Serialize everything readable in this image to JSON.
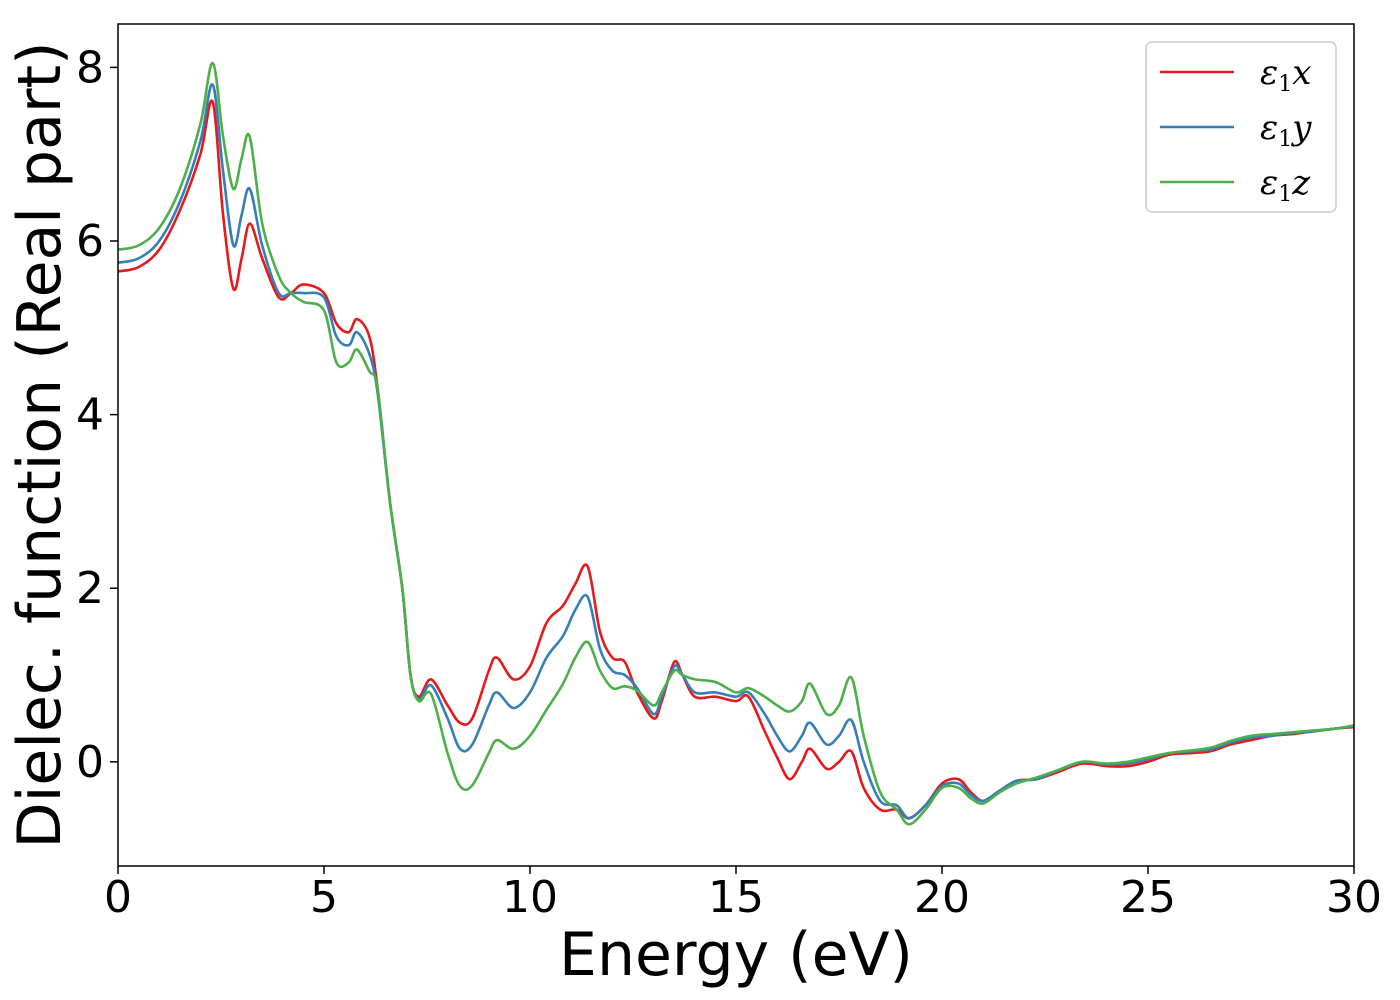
{
  "chart_data": {
    "type": "line",
    "title": "",
    "xlabel": "Energy (eV)",
    "ylabel": "Dielec. function (Real part)",
    "xlim": [
      0,
      30
    ],
    "ylim": [
      -1.2,
      8.5
    ],
    "xticks": [
      0,
      5,
      10,
      15,
      20,
      25,
      30
    ],
    "yticks": [
      0,
      2,
      4,
      6,
      8
    ],
    "grid": false,
    "legend_position": "top-right",
    "series": [
      {
        "name": "ε1x",
        "legend_symbol": "ε",
        "legend_sub": "1",
        "legend_axis": "x",
        "color": "#e41a1c",
        "points": [
          [
            0,
            5.65
          ],
          [
            0.5,
            5.7
          ],
          [
            1.0,
            5.9
          ],
          [
            1.5,
            6.35
          ],
          [
            2.0,
            7.0
          ],
          [
            2.3,
            7.6
          ],
          [
            2.55,
            6.3
          ],
          [
            2.8,
            5.45
          ],
          [
            3.0,
            5.8
          ],
          [
            3.2,
            6.2
          ],
          [
            3.5,
            5.8
          ],
          [
            3.9,
            5.35
          ],
          [
            4.2,
            5.4
          ],
          [
            4.5,
            5.5
          ],
          [
            5.0,
            5.4
          ],
          [
            5.3,
            5.05
          ],
          [
            5.6,
            4.95
          ],
          [
            5.8,
            5.1
          ],
          [
            6.1,
            4.9
          ],
          [
            6.3,
            4.3
          ],
          [
            6.6,
            3.0
          ],
          [
            6.9,
            2.0
          ],
          [
            7.1,
            1.0
          ],
          [
            7.3,
            0.75
          ],
          [
            7.6,
            0.95
          ],
          [
            8.0,
            0.65
          ],
          [
            8.3,
            0.45
          ],
          [
            8.6,
            0.5
          ],
          [
            9.0,
            1.05
          ],
          [
            9.2,
            1.2
          ],
          [
            9.6,
            0.95
          ],
          [
            10.0,
            1.1
          ],
          [
            10.4,
            1.6
          ],
          [
            10.8,
            1.8
          ],
          [
            11.1,
            2.05
          ],
          [
            11.4,
            2.25
          ],
          [
            11.7,
            1.5
          ],
          [
            12.0,
            1.2
          ],
          [
            12.3,
            1.15
          ],
          [
            12.6,
            0.8
          ],
          [
            13.0,
            0.5
          ],
          [
            13.2,
            0.7
          ],
          [
            13.5,
            1.15
          ],
          [
            13.7,
            1.0
          ],
          [
            14.0,
            0.75
          ],
          [
            14.5,
            0.75
          ],
          [
            15.0,
            0.7
          ],
          [
            15.3,
            0.75
          ],
          [
            15.7,
            0.35
          ],
          [
            16.0,
            0.05
          ],
          [
            16.3,
            -0.2
          ],
          [
            16.6,
            0.0
          ],
          [
            16.8,
            0.15
          ],
          [
            17.2,
            -0.08
          ],
          [
            17.5,
            0.0
          ],
          [
            17.8,
            0.12
          ],
          [
            18.1,
            -0.3
          ],
          [
            18.5,
            -0.55
          ],
          [
            18.9,
            -0.55
          ],
          [
            19.2,
            -0.65
          ],
          [
            19.6,
            -0.5
          ],
          [
            20.0,
            -0.25
          ],
          [
            20.4,
            -0.2
          ],
          [
            20.7,
            -0.35
          ],
          [
            21.0,
            -0.45
          ],
          [
            21.4,
            -0.35
          ],
          [
            21.8,
            -0.22
          ],
          [
            22.3,
            -0.2
          ],
          [
            22.8,
            -0.12
          ],
          [
            23.4,
            -0.02
          ],
          [
            24.0,
            -0.05
          ],
          [
            24.5,
            -0.05
          ],
          [
            25.0,
            0.0
          ],
          [
            25.5,
            0.08
          ],
          [
            26.0,
            0.1
          ],
          [
            26.5,
            0.12
          ],
          [
            27.0,
            0.2
          ],
          [
            27.5,
            0.25
          ],
          [
            28.0,
            0.3
          ],
          [
            28.5,
            0.32
          ],
          [
            29.0,
            0.35
          ],
          [
            29.5,
            0.38
          ],
          [
            30.0,
            0.4
          ]
        ]
      },
      {
        "name": "ε1y",
        "legend_symbol": "ε",
        "legend_sub": "1",
        "legend_axis": "y",
        "color": "#377eb8",
        "points": [
          [
            0,
            5.75
          ],
          [
            0.5,
            5.8
          ],
          [
            1.0,
            6.0
          ],
          [
            1.5,
            6.45
          ],
          [
            2.0,
            7.15
          ],
          [
            2.3,
            7.8
          ],
          [
            2.55,
            6.8
          ],
          [
            2.8,
            5.95
          ],
          [
            3.0,
            6.3
          ],
          [
            3.2,
            6.6
          ],
          [
            3.5,
            5.95
          ],
          [
            3.9,
            5.4
          ],
          [
            4.2,
            5.4
          ],
          [
            4.5,
            5.4
          ],
          [
            5.0,
            5.35
          ],
          [
            5.3,
            4.9
          ],
          [
            5.6,
            4.8
          ],
          [
            5.8,
            4.95
          ],
          [
            6.1,
            4.7
          ],
          [
            6.3,
            4.25
          ],
          [
            6.6,
            3.0
          ],
          [
            6.9,
            2.0
          ],
          [
            7.1,
            1.0
          ],
          [
            7.3,
            0.72
          ],
          [
            7.6,
            0.88
          ],
          [
            8.0,
            0.5
          ],
          [
            8.3,
            0.15
          ],
          [
            8.6,
            0.2
          ],
          [
            9.0,
            0.65
          ],
          [
            9.2,
            0.8
          ],
          [
            9.6,
            0.62
          ],
          [
            10.0,
            0.8
          ],
          [
            10.4,
            1.2
          ],
          [
            10.8,
            1.45
          ],
          [
            11.1,
            1.75
          ],
          [
            11.4,
            1.9
          ],
          [
            11.7,
            1.3
          ],
          [
            12.0,
            1.05
          ],
          [
            12.3,
            1.0
          ],
          [
            12.6,
            0.85
          ],
          [
            13.0,
            0.55
          ],
          [
            13.2,
            0.75
          ],
          [
            13.5,
            1.1
          ],
          [
            13.7,
            1.0
          ],
          [
            14.0,
            0.8
          ],
          [
            14.5,
            0.8
          ],
          [
            15.0,
            0.75
          ],
          [
            15.3,
            0.8
          ],
          [
            15.7,
            0.55
          ],
          [
            16.0,
            0.3
          ],
          [
            16.3,
            0.12
          ],
          [
            16.6,
            0.3
          ],
          [
            16.8,
            0.45
          ],
          [
            17.2,
            0.2
          ],
          [
            17.5,
            0.3
          ],
          [
            17.8,
            0.48
          ],
          [
            18.1,
            0.0
          ],
          [
            18.5,
            -0.45
          ],
          [
            18.9,
            -0.5
          ],
          [
            19.2,
            -0.65
          ],
          [
            19.6,
            -0.5
          ],
          [
            20.0,
            -0.28
          ],
          [
            20.4,
            -0.25
          ],
          [
            20.7,
            -0.38
          ],
          [
            21.0,
            -0.45
          ],
          [
            21.4,
            -0.33
          ],
          [
            21.8,
            -0.22
          ],
          [
            22.3,
            -0.2
          ],
          [
            22.8,
            -0.1
          ],
          [
            23.4,
            0.0
          ],
          [
            24.0,
            -0.03
          ],
          [
            24.5,
            -0.02
          ],
          [
            25.0,
            0.03
          ],
          [
            25.5,
            0.1
          ],
          [
            26.0,
            0.12
          ],
          [
            26.5,
            0.14
          ],
          [
            27.0,
            0.22
          ],
          [
            27.5,
            0.28
          ],
          [
            28.0,
            0.3
          ],
          [
            28.5,
            0.33
          ],
          [
            29.0,
            0.35
          ],
          [
            29.5,
            0.38
          ],
          [
            30.0,
            0.41
          ]
        ]
      },
      {
        "name": "ε1z",
        "legend_symbol": "ε",
        "legend_sub": "1",
        "legend_axis": "z",
        "color": "#4daf4a",
        "points": [
          [
            0,
            5.9
          ],
          [
            0.5,
            5.95
          ],
          [
            1.0,
            6.15
          ],
          [
            1.5,
            6.6
          ],
          [
            2.0,
            7.35
          ],
          [
            2.3,
            8.05
          ],
          [
            2.55,
            7.2
          ],
          [
            2.8,
            6.6
          ],
          [
            3.0,
            6.95
          ],
          [
            3.2,
            7.2
          ],
          [
            3.5,
            6.2
          ],
          [
            3.9,
            5.6
          ],
          [
            4.2,
            5.4
          ],
          [
            4.5,
            5.3
          ],
          [
            5.0,
            5.2
          ],
          [
            5.3,
            4.6
          ],
          [
            5.6,
            4.6
          ],
          [
            5.8,
            4.75
          ],
          [
            6.1,
            4.5
          ],
          [
            6.3,
            4.3
          ],
          [
            6.6,
            3.0
          ],
          [
            6.9,
            2.0
          ],
          [
            7.1,
            1.0
          ],
          [
            7.3,
            0.7
          ],
          [
            7.6,
            0.78
          ],
          [
            8.0,
            0.1
          ],
          [
            8.3,
            -0.28
          ],
          [
            8.6,
            -0.27
          ],
          [
            9.0,
            0.1
          ],
          [
            9.2,
            0.25
          ],
          [
            9.6,
            0.15
          ],
          [
            10.0,
            0.3
          ],
          [
            10.4,
            0.6
          ],
          [
            10.8,
            0.9
          ],
          [
            11.1,
            1.2
          ],
          [
            11.4,
            1.38
          ],
          [
            11.7,
            1.05
          ],
          [
            12.0,
            0.85
          ],
          [
            12.3,
            0.87
          ],
          [
            12.6,
            0.82
          ],
          [
            13.0,
            0.65
          ],
          [
            13.2,
            0.8
          ],
          [
            13.5,
            1.05
          ],
          [
            13.7,
            1.0
          ],
          [
            14.0,
            0.95
          ],
          [
            14.5,
            0.92
          ],
          [
            15.0,
            0.8
          ],
          [
            15.3,
            0.85
          ],
          [
            15.7,
            0.75
          ],
          [
            16.0,
            0.65
          ],
          [
            16.3,
            0.58
          ],
          [
            16.6,
            0.7
          ],
          [
            16.8,
            0.9
          ],
          [
            17.2,
            0.55
          ],
          [
            17.5,
            0.65
          ],
          [
            17.8,
            0.97
          ],
          [
            18.1,
            0.3
          ],
          [
            18.5,
            -0.35
          ],
          [
            18.9,
            -0.55
          ],
          [
            19.2,
            -0.72
          ],
          [
            19.6,
            -0.55
          ],
          [
            20.0,
            -0.3
          ],
          [
            20.4,
            -0.3
          ],
          [
            20.7,
            -0.42
          ],
          [
            21.0,
            -0.48
          ],
          [
            21.4,
            -0.35
          ],
          [
            21.8,
            -0.25
          ],
          [
            22.3,
            -0.18
          ],
          [
            22.8,
            -0.1
          ],
          [
            23.4,
            0.0
          ],
          [
            24.0,
            -0.02
          ],
          [
            24.5,
            0.0
          ],
          [
            25.0,
            0.05
          ],
          [
            25.5,
            0.1
          ],
          [
            26.0,
            0.13
          ],
          [
            26.5,
            0.16
          ],
          [
            27.0,
            0.24
          ],
          [
            27.5,
            0.3
          ],
          [
            28.0,
            0.32
          ],
          [
            28.5,
            0.34
          ],
          [
            29.0,
            0.36
          ],
          [
            29.5,
            0.38
          ],
          [
            30.0,
            0.42
          ]
        ]
      }
    ]
  }
}
